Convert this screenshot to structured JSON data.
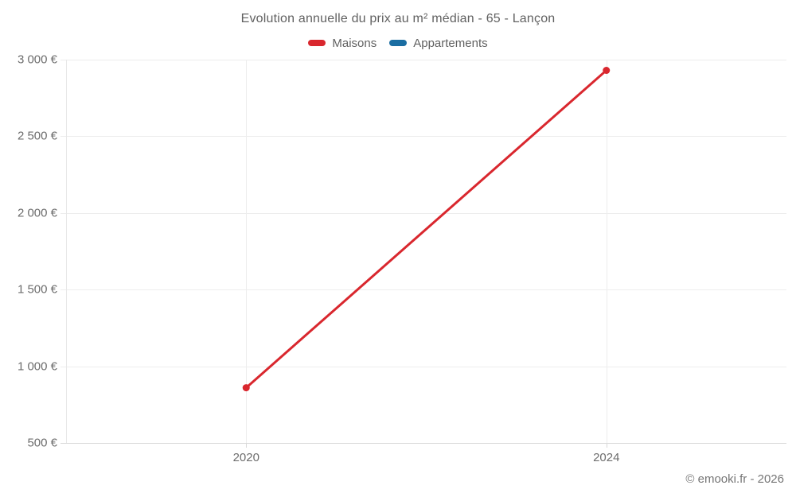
{
  "title": "Evolution annuelle du prix au m² médian - 65 - Lançon",
  "footer": {
    "copyright": "© emooki.fr - 2026"
  },
  "chart_data": {
    "type": "line",
    "title": "Evolution annuelle du prix au m² médian - 65 - Lançon",
    "x": [
      2020,
      2024
    ],
    "x_tick_labels": [
      "2020",
      "2024"
    ],
    "x_range": [
      2018,
      2026
    ],
    "y_ticks": [
      500,
      1000,
      1500,
      2000,
      2500,
      3000
    ],
    "y_tick_labels": [
      "500 €",
      "1 000 €",
      "1 500 €",
      "2 000 €",
      "2 500 €",
      "3 000 €"
    ],
    "ylim": [
      500,
      3000
    ],
    "grid": true,
    "legend_position": "top",
    "series": [
      {
        "name": "Maisons",
        "color": "#d9272e",
        "values": [
          860,
          2930
        ]
      },
      {
        "name": "Appartements",
        "color": "#1a6da2",
        "values": []
      }
    ]
  }
}
